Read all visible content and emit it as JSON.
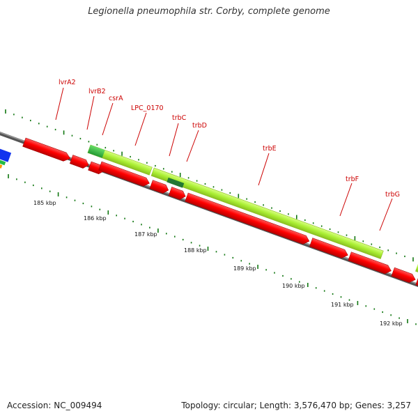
{
  "title": "Legionella pneumophila str. Corby, complete genome",
  "footer": {
    "accession": "Accession: NC_009494",
    "summary": "Topology: circular; Length: 3,576,470 bp; Genes: 3,257"
  },
  "colors": {
    "backbone": "#7a7a7a",
    "forward_gene": "#ee1111",
    "reverse_gene": "#ff0000",
    "operon_bar": "#aaee33",
    "highlight_gene": "#33bb44",
    "dark_highlight": "#227733",
    "tick": "#117711",
    "label_line": "#cc0000",
    "label_text": "#cc0000",
    "edge_blue": "#1133ee",
    "edge_orange": "#ff9900"
  },
  "genome_map": {
    "region_start_kbp": 184.2,
    "region_end_kbp": 192.6,
    "scale_labels": [
      {
        "kbp": 185,
        "text": "185 kbp"
      },
      {
        "kbp": 186,
        "text": "186 kbp"
      },
      {
        "kbp": 187,
        "text": "187 kbp"
      },
      {
        "kbp": 188,
        "text": "188 kbp"
      },
      {
        "kbp": 189,
        "text": "189 kbp"
      },
      {
        "kbp": 190,
        "text": "190 kbp"
      },
      {
        "kbp": 191,
        "text": "191 kbp"
      },
      {
        "kbp": 192,
        "text": "192 kbp"
      }
    ],
    "gene_labels": [
      {
        "name": "lvrA2",
        "kbp": 185.05
      },
      {
        "name": "lvrB2",
        "kbp": 185.7
      },
      {
        "name": "csrA",
        "kbp": 186.05
      },
      {
        "name": "LPC_0170",
        "kbp": 186.45
      },
      {
        "name": "trbC",
        "kbp": 187.3
      },
      {
        "name": "trbD",
        "kbp": 187.6
      },
      {
        "name": "trbE",
        "kbp": 188.9
      },
      {
        "name": "trbF",
        "kbp": 190.6
      },
      {
        "name": "trbG",
        "kbp": 191.3
      }
    ]
  }
}
